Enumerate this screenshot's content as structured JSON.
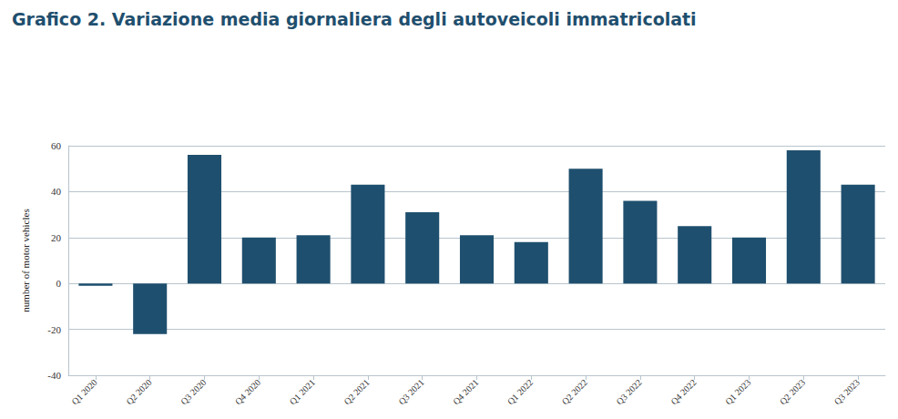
{
  "chart_data": {
    "type": "bar",
    "title": "Grafico 2. Variazione media giornaliera degli autoveicoli immatricolati",
    "y_label": "number of motor vehicles",
    "categories": [
      "Q1 2020",
      "Q2 2020",
      "Q3 2020",
      "Q4 2020",
      "Q1 2021",
      "Q2 2021",
      "Q3 2021",
      "Q4 2021",
      "Q1 2022",
      "Q2 2022",
      "Q3 2022",
      "Q4 2022",
      "Q1 2023",
      "Q2 2023",
      "Q3 2023"
    ],
    "values": [
      -1,
      -22,
      56,
      20,
      21,
      43,
      31,
      21,
      18,
      50,
      36,
      25,
      20,
      58,
      43
    ],
    "color": "#1f4f6e",
    "ylim": [
      -40,
      60
    ],
    "yticks": [
      -40,
      -20,
      0,
      20,
      40,
      60
    ],
    "grid": true
  }
}
